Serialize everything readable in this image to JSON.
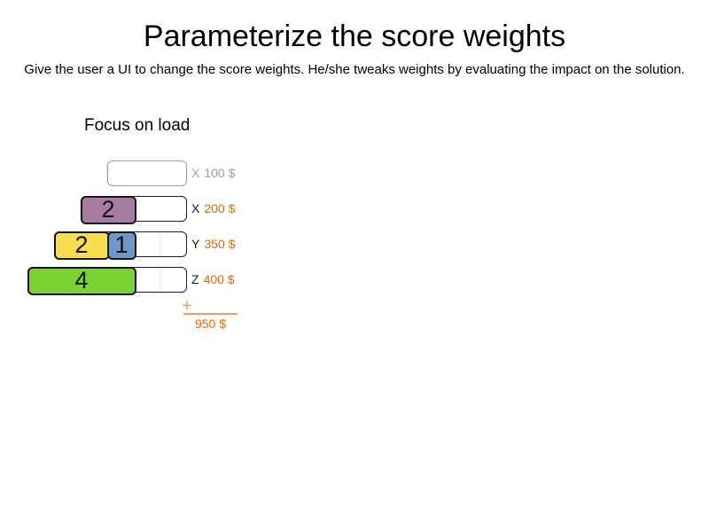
{
  "title": "Parameterize the score weights",
  "subtitle": "Give the user a UI to change the score weights. He/she tweaks weights by evaluating the impact on the solution.",
  "section_heading": "Focus on load",
  "colors": {
    "purple": "#A77CA2",
    "yellow": "#F8DF4D",
    "blue": "#7099CB",
    "green": "#7AD233",
    "orange": "#E36C0A",
    "line_orange": "#EDA05F",
    "muted_gray": "#9E9E9E"
  },
  "weight_rows": [
    {
      "label_letter": "X",
      "cost": "100 $",
      "muted": true,
      "total_units": 3,
      "blocks": []
    },
    {
      "label_letter": "X",
      "cost": "200 $",
      "muted": false,
      "total_units": 4,
      "blocks": [
        {
          "value": "2",
          "color": "purple",
          "units": 2
        }
      ]
    },
    {
      "label_letter": "Y",
      "cost": "350 $",
      "muted": false,
      "total_units": 5,
      "blocks": [
        {
          "value": "2",
          "color": "yellow",
          "units": 2
        },
        {
          "value": "1",
          "color": "blue",
          "units": 1
        }
      ]
    },
    {
      "label_letter": "Z",
      "cost": "400 $",
      "muted": false,
      "total_units": 6,
      "blocks": [
        {
          "value": "4",
          "color": "green",
          "units": 4
        }
      ]
    }
  ],
  "sum": {
    "plus_sign": "+",
    "total": "950 $"
  }
}
